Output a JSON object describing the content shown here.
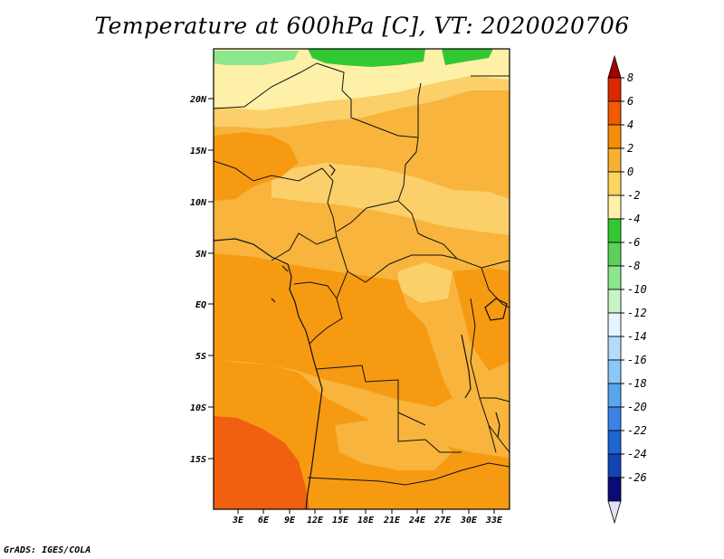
{
  "title": "Temperature at 600hPa [C], VT: 2020020706",
  "credit": "GrADS: IGES/COLA",
  "lat_labels": [
    "20N",
    "15N",
    "10N",
    "5N",
    "EQ",
    "5S",
    "10S",
    "15S"
  ],
  "lon_labels": [
    "3E",
    "6E",
    "9E",
    "12E",
    "15E",
    "18E",
    "21E",
    "24E",
    "27E",
    "30E",
    "33E"
  ],
  "colorbar": {
    "labels": [
      "8",
      "6",
      "4",
      "2",
      "0",
      "-2",
      "-4",
      "-6",
      "-8",
      "-10",
      "-12",
      "-14",
      "-16",
      "-18",
      "-20",
      "-22",
      "-24",
      "-26"
    ],
    "colors": [
      "#a50000",
      "#dc2800",
      "#f05a00",
      "#f68c0a",
      "#f9b030",
      "#fcd460",
      "#fff0a8",
      "#32c832",
      "#5ad25a",
      "#8ce68c",
      "#c8f5c8",
      "#e6f4ff",
      "#b4dcfa",
      "#8cc8f5",
      "#5aa5ef",
      "#3c82e6",
      "#1e64d2",
      "#0f46b4",
      "#0a0a78",
      "#e0e0f8"
    ]
  },
  "palette": {
    "dark_orange": "#f06010",
    "orange": "#f69a12",
    "light_orange": "#f8b43c",
    "tan": "#fbd06a",
    "pale": "#fff0a8",
    "green": "#32c832",
    "light_green": "#8ce68c"
  }
}
